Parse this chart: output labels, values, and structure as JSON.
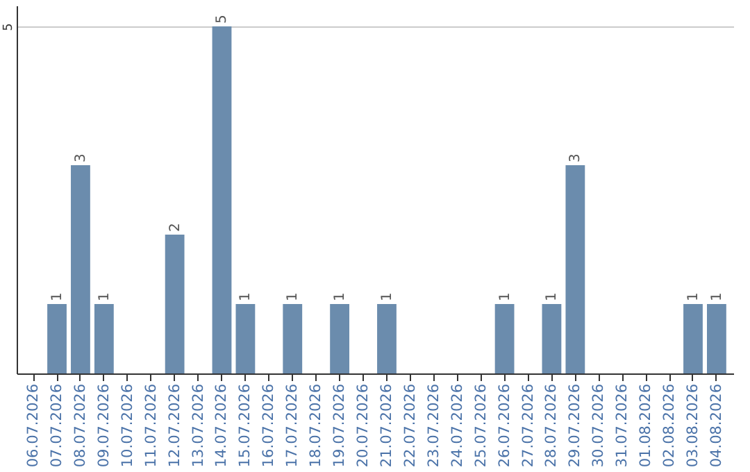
{
  "chart_data": {
    "type": "bar",
    "categories": [
      "06.07.2026",
      "07.07.2026",
      "08.07.2026",
      "09.07.2026",
      "10.07.2026",
      "11.07.2026",
      "12.07.2026",
      "13.07.2026",
      "14.07.2026",
      "15.07.2026",
      "16.07.2026",
      "17.07.2026",
      "18.07.2026",
      "19.07.2026",
      "20.07.2026",
      "21.07.2026",
      "22.07.2026",
      "23.07.2026",
      "24.07.2026",
      "25.07.2026",
      "26.07.2026",
      "27.07.2026",
      "28.07.2026",
      "29.07.2026",
      "30.07.2026",
      "31.07.2026",
      "01.08.2026",
      "02.08.2026",
      "03.08.2026",
      "04.08.2026"
    ],
    "values": [
      0,
      1,
      3,
      1,
      0,
      0,
      2,
      0,
      5,
      1,
      0,
      1,
      0,
      1,
      0,
      1,
      0,
      0,
      0,
      0,
      1,
      0,
      1,
      3,
      0,
      0,
      0,
      0,
      1,
      1
    ],
    "value_labels": [
      null,
      "1",
      "3",
      "1",
      null,
      null,
      "2",
      null,
      "5",
      "1",
      null,
      "1",
      null,
      "1",
      null,
      "1",
      null,
      null,
      null,
      null,
      "1",
      null,
      "1",
      "3",
      null,
      null,
      null,
      null,
      "1",
      "1"
    ],
    "color": "#6b8cad",
    "ylim": [
      0,
      5.3
    ],
    "yticks": [
      5
    ],
    "grid": "y"
  }
}
